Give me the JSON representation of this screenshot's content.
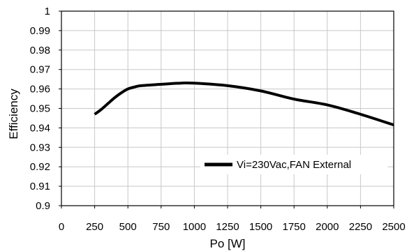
{
  "chart_data": {
    "type": "line",
    "title": "",
    "xlabel": "Po [W]",
    "ylabel": "Efficiency",
    "xlim": [
      0,
      2500
    ],
    "ylim": [
      0.9,
      1
    ],
    "x_ticks": [
      0,
      250,
      500,
      750,
      1000,
      1250,
      1500,
      1750,
      2000,
      2250,
      2500
    ],
    "x_tick_labels": [
      "0",
      "250",
      "500",
      "750",
      "1000",
      "1250",
      "1500",
      "1750",
      "2000",
      "2250",
      "2500"
    ],
    "y_ticks": [
      0.9,
      0.91,
      0.92,
      0.93,
      0.94,
      0.95,
      0.96,
      0.97,
      0.98,
      0.99,
      1
    ],
    "y_tick_labels": [
      "0.9",
      "0.91",
      "0.92",
      "0.93",
      "0.94",
      "0.95",
      "0.96",
      "0.97",
      "0.98",
      "0.99",
      "1"
    ],
    "grid": true,
    "legend_position": "bottom-right",
    "series": [
      {
        "name": "Vi=230Vac,FAN External",
        "color": "#000000",
        "x": [
          250,
          300,
          350,
          400,
          450,
          500,
          550,
          600,
          750,
          900,
          1000,
          1250,
          1500,
          1750,
          2000,
          2250,
          2500
        ],
        "y": [
          0.947,
          0.9495,
          0.9525,
          0.9555,
          0.958,
          0.96,
          0.961,
          0.9617,
          0.9624,
          0.963,
          0.963,
          0.9617,
          0.959,
          0.9548,
          0.9518,
          0.947,
          0.9415
        ]
      }
    ]
  }
}
